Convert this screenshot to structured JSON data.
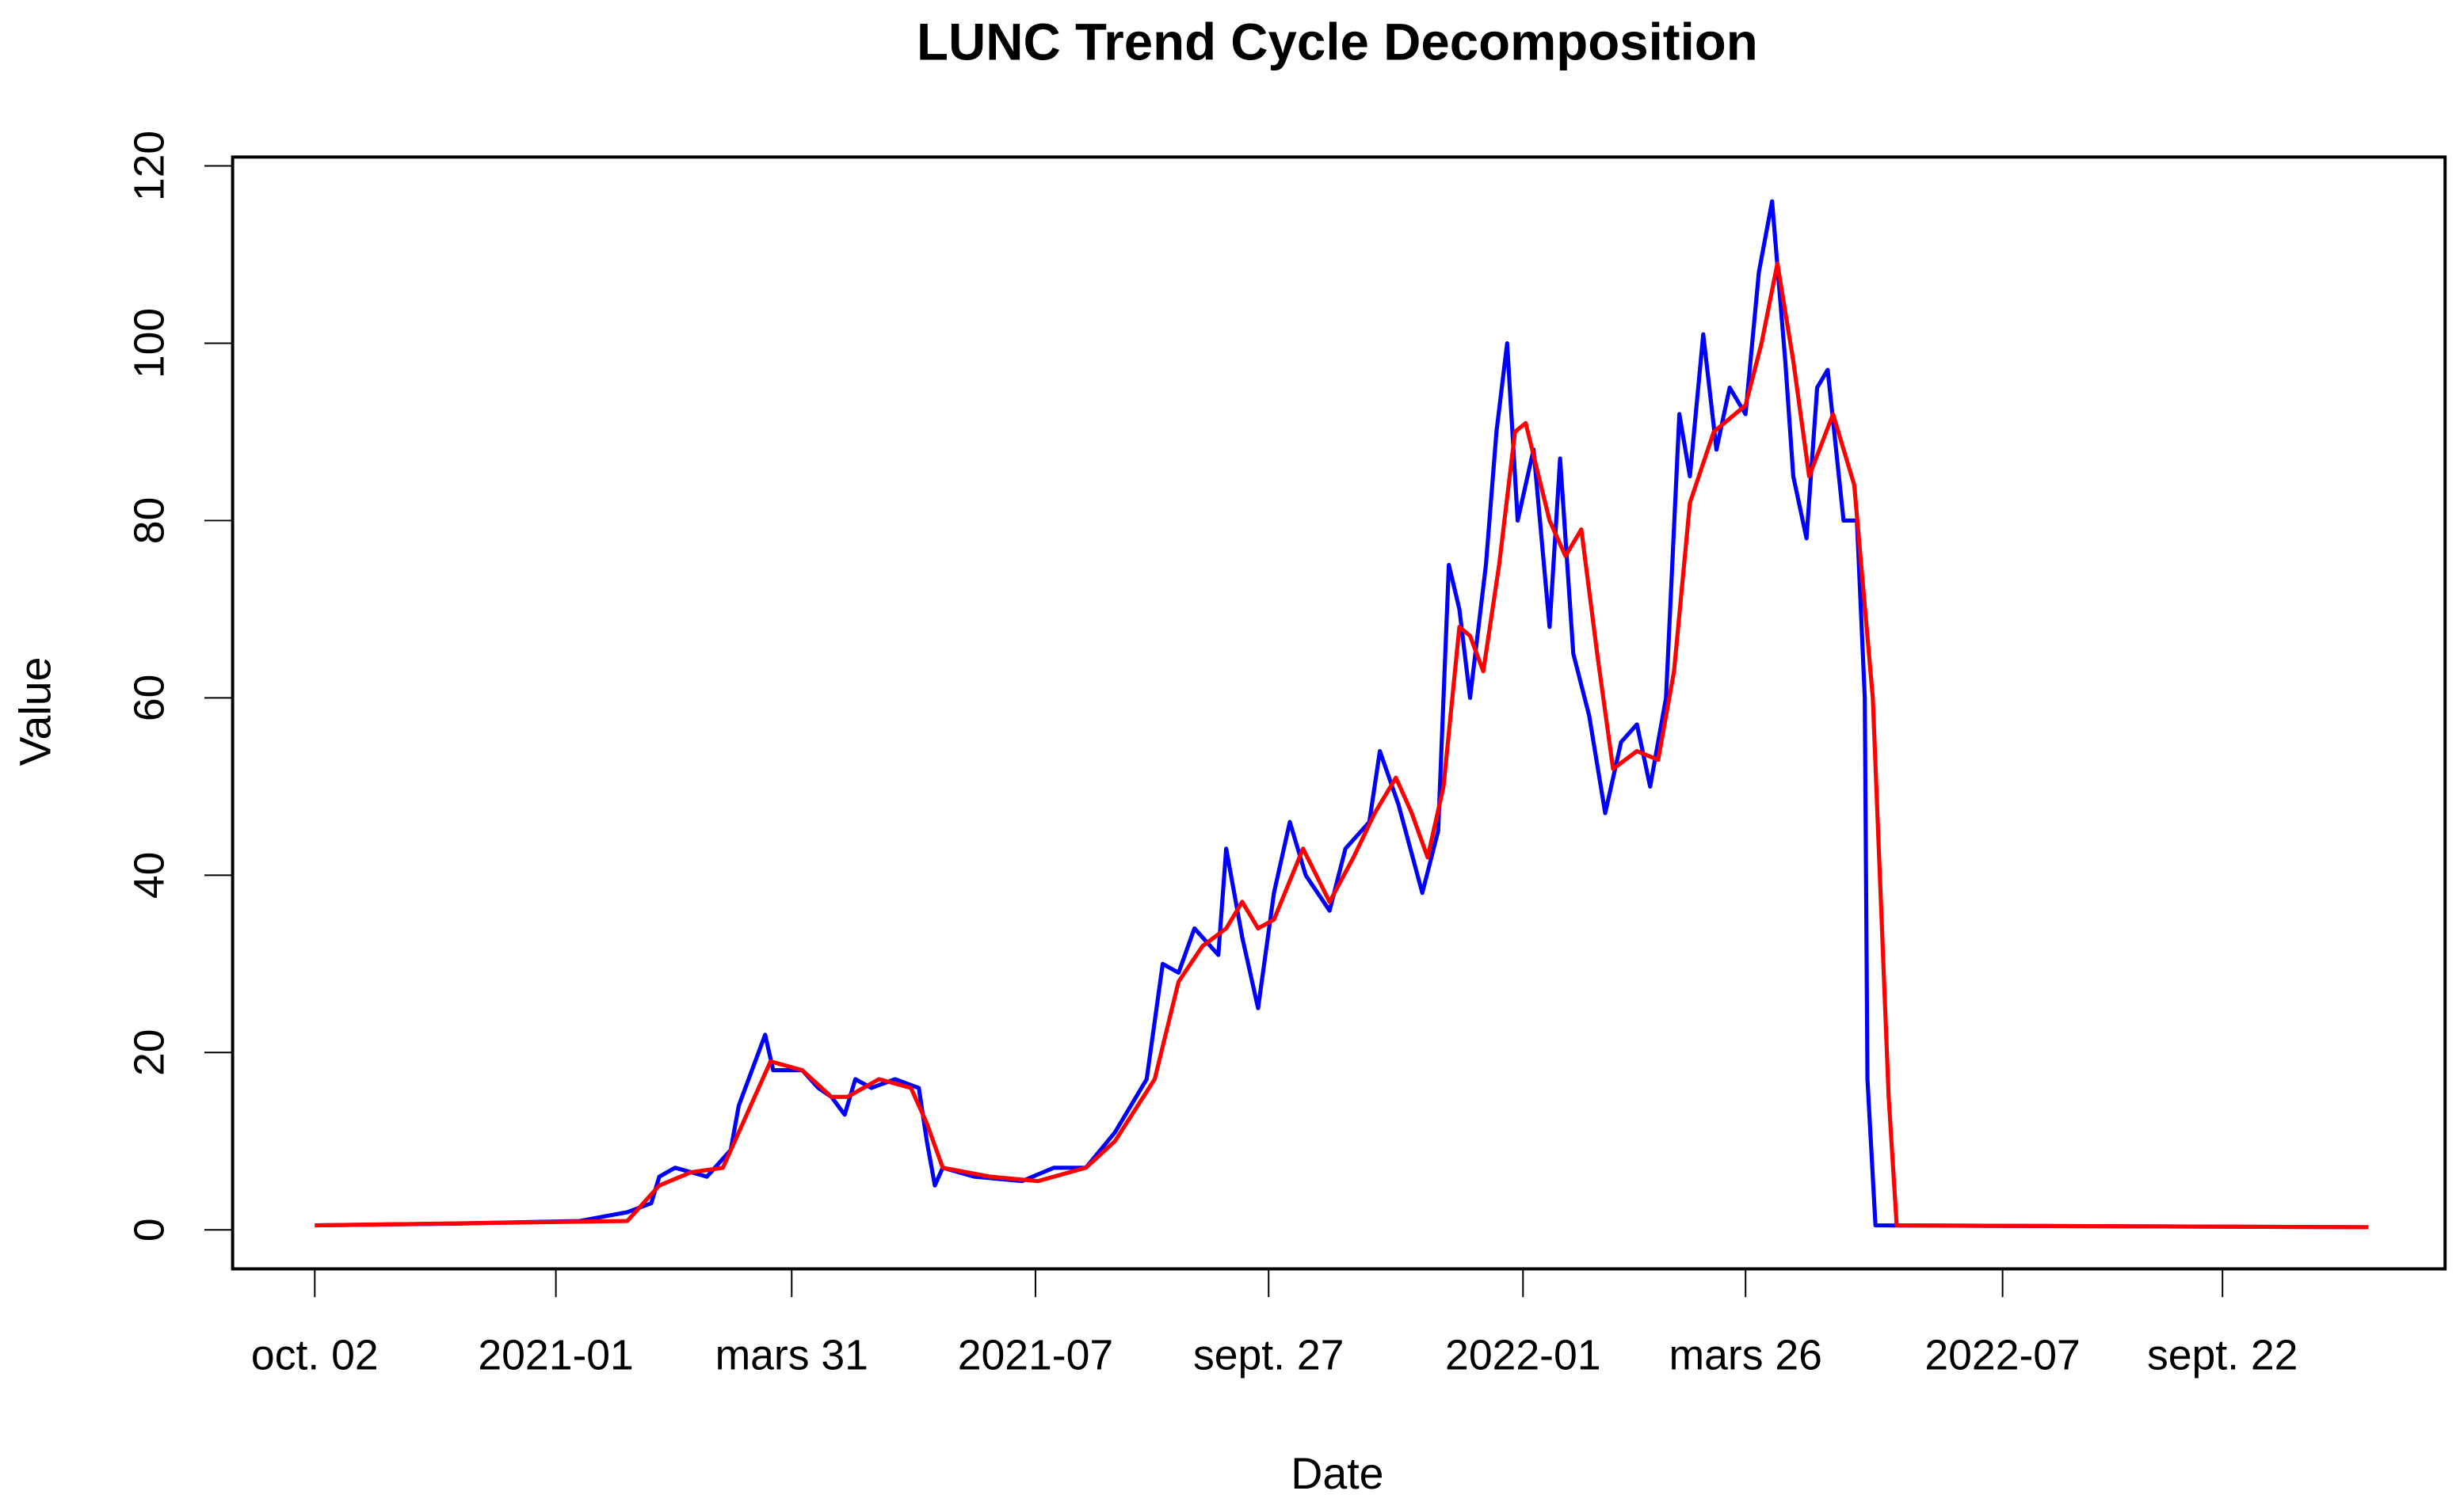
{
  "chart_data": {
    "type": "line",
    "title": "LUNC Trend Cycle Decomposition",
    "xlabel": "Date",
    "ylabel": "Value",
    "xlim": [
      "2020-09-01",
      "2022-12-15"
    ],
    "ylim": [
      -4.4,
      121
    ],
    "grid": false,
    "legend": "none",
    "x_ticks": [
      {
        "date": "2020-10-02",
        "label": "oct. 02"
      },
      {
        "date": "2021-01-01",
        "label": "2021-01"
      },
      {
        "date": "2021-03-31",
        "label": "mars 31"
      },
      {
        "date": "2021-07-01",
        "label": "2021-07"
      },
      {
        "date": "2021-09-27",
        "label": "sept. 27"
      },
      {
        "date": "2022-01-01",
        "label": "2022-01"
      },
      {
        "date": "2022-03-26",
        "label": "mars 26"
      },
      {
        "date": "2022-07-01",
        "label": "2022-07"
      },
      {
        "date": "2022-09-22",
        "label": "sept. 22"
      }
    ],
    "y_ticks": [
      0,
      20,
      40,
      60,
      80,
      100,
      120
    ],
    "series": [
      {
        "color": "#0000ff",
        "points": [
          [
            "2020-10-02",
            0.5
          ],
          [
            "2020-11-24",
            0.7
          ],
          [
            "2021-01-10",
            1
          ],
          [
            "2021-01-28",
            2
          ],
          [
            "2021-02-06",
            3
          ],
          [
            "2021-02-09",
            6
          ],
          [
            "2021-02-15",
            7
          ],
          [
            "2021-02-27",
            6
          ],
          [
            "2021-03-08",
            9
          ],
          [
            "2021-03-11",
            14
          ],
          [
            "2021-03-16",
            18
          ],
          [
            "2021-03-21",
            22
          ],
          [
            "2021-03-24",
            18
          ],
          [
            "2021-04-04",
            18
          ],
          [
            "2021-04-10",
            16
          ],
          [
            "2021-04-15",
            15
          ],
          [
            "2021-04-20",
            13
          ],
          [
            "2021-04-24",
            17
          ],
          [
            "2021-04-30",
            16
          ],
          [
            "2021-05-09",
            17
          ],
          [
            "2021-05-18",
            16
          ],
          [
            "2021-05-21",
            10
          ],
          [
            "2021-05-24",
            5
          ],
          [
            "2021-05-27",
            7
          ],
          [
            "2021-06-08",
            6
          ],
          [
            "2021-06-26",
            5.5
          ],
          [
            "2021-07-08",
            7
          ],
          [
            "2021-07-20",
            7
          ],
          [
            "2021-07-31",
            11
          ],
          [
            "2021-08-12",
            17
          ],
          [
            "2021-08-18",
            30
          ],
          [
            "2021-08-24",
            29
          ],
          [
            "2021-08-30",
            34
          ],
          [
            "2021-09-08",
            31
          ],
          [
            "2021-09-11",
            43
          ],
          [
            "2021-09-17",
            33
          ],
          [
            "2021-09-23",
            25
          ],
          [
            "2021-09-29",
            38
          ],
          [
            "2021-10-05",
            46
          ],
          [
            "2021-10-11",
            40
          ],
          [
            "2021-10-20",
            36
          ],
          [
            "2021-10-26",
            43
          ],
          [
            "2021-11-04",
            46
          ],
          [
            "2021-11-08",
            54
          ],
          [
            "2021-11-15",
            48
          ],
          [
            "2021-11-24",
            38
          ],
          [
            "2021-11-30",
            45
          ],
          [
            "2021-12-04",
            75
          ],
          [
            "2021-12-08",
            70
          ],
          [
            "2021-12-12",
            60
          ],
          [
            "2021-12-18",
            75
          ],
          [
            "2021-12-22",
            90
          ],
          [
            "2021-12-26",
            100
          ],
          [
            "2021-12-30",
            80
          ],
          [
            "2022-01-05",
            88
          ],
          [
            "2022-01-11",
            68
          ],
          [
            "2022-01-15",
            87
          ],
          [
            "2022-01-20",
            65
          ],
          [
            "2022-01-26",
            58
          ],
          [
            "2022-02-01",
            47
          ],
          [
            "2022-02-07",
            55
          ],
          [
            "2022-02-13",
            57
          ],
          [
            "2022-02-18",
            50
          ],
          [
            "2022-02-24",
            60
          ],
          [
            "2022-03-01",
            92
          ],
          [
            "2022-03-05",
            85
          ],
          [
            "2022-03-10",
            101
          ],
          [
            "2022-03-15",
            88
          ],
          [
            "2022-03-20",
            95
          ],
          [
            "2022-03-26",
            92
          ],
          [
            "2022-03-31",
            108
          ],
          [
            "2022-04-05",
            116
          ],
          [
            "2022-04-10",
            98
          ],
          [
            "2022-04-13",
            85
          ],
          [
            "2022-04-18",
            78
          ],
          [
            "2022-04-22",
            95
          ],
          [
            "2022-04-26",
            97
          ],
          [
            "2022-05-02",
            80
          ],
          [
            "2022-05-07",
            80
          ],
          [
            "2022-05-10",
            60
          ],
          [
            "2022-05-11",
            17
          ],
          [
            "2022-05-14",
            0.5
          ],
          [
            "2022-11-16",
            0.3
          ]
        ]
      },
      {
        "color": "#ff0000",
        "points": [
          [
            "2020-10-02",
            0.5
          ],
          [
            "2021-01-28",
            1
          ],
          [
            "2021-02-09",
            5
          ],
          [
            "2021-02-21",
            6.5
          ],
          [
            "2021-03-05",
            7
          ],
          [
            "2021-03-17",
            15
          ],
          [
            "2021-03-23",
            19
          ],
          [
            "2021-04-04",
            18
          ],
          [
            "2021-04-15",
            15
          ],
          [
            "2021-04-21",
            15
          ],
          [
            "2021-05-03",
            17
          ],
          [
            "2021-05-15",
            16
          ],
          [
            "2021-05-21",
            12
          ],
          [
            "2021-05-27",
            7
          ],
          [
            "2021-06-14",
            6
          ],
          [
            "2021-07-02",
            5.5
          ],
          [
            "2021-07-20",
            7
          ],
          [
            "2021-07-31",
            10
          ],
          [
            "2021-08-15",
            17
          ],
          [
            "2021-08-24",
            28
          ],
          [
            "2021-09-02",
            32
          ],
          [
            "2021-09-11",
            34
          ],
          [
            "2021-09-17",
            37
          ],
          [
            "2021-09-23",
            34
          ],
          [
            "2021-09-29",
            35
          ],
          [
            "2021-10-10",
            43
          ],
          [
            "2021-10-20",
            37
          ],
          [
            "2021-10-29",
            42
          ],
          [
            "2021-11-06",
            47
          ],
          [
            "2021-11-14",
            51
          ],
          [
            "2021-11-20",
            47
          ],
          [
            "2021-11-26",
            42
          ],
          [
            "2021-12-02",
            50
          ],
          [
            "2021-12-08",
            68
          ],
          [
            "2021-12-12",
            67
          ],
          [
            "2021-12-17",
            63
          ],
          [
            "2021-12-23",
            75
          ],
          [
            "2021-12-29",
            90
          ],
          [
            "2022-01-02",
            91
          ],
          [
            "2022-01-11",
            80
          ],
          [
            "2022-01-17",
            76
          ],
          [
            "2022-01-23",
            79
          ],
          [
            "2022-01-29",
            65
          ],
          [
            "2022-02-04",
            52
          ],
          [
            "2022-02-13",
            54
          ],
          [
            "2022-02-21",
            53
          ],
          [
            "2022-02-27",
            63
          ],
          [
            "2022-03-05",
            82
          ],
          [
            "2022-03-14",
            90
          ],
          [
            "2022-03-26",
            93
          ],
          [
            "2022-04-01",
            100
          ],
          [
            "2022-04-07",
            109
          ],
          [
            "2022-04-13",
            98
          ],
          [
            "2022-04-19",
            85
          ],
          [
            "2022-04-28",
            92
          ],
          [
            "2022-05-06",
            84
          ],
          [
            "2022-05-13",
            60
          ],
          [
            "2022-05-19",
            15
          ],
          [
            "2022-05-22",
            0.5
          ],
          [
            "2022-11-16",
            0.3
          ]
        ]
      }
    ]
  }
}
